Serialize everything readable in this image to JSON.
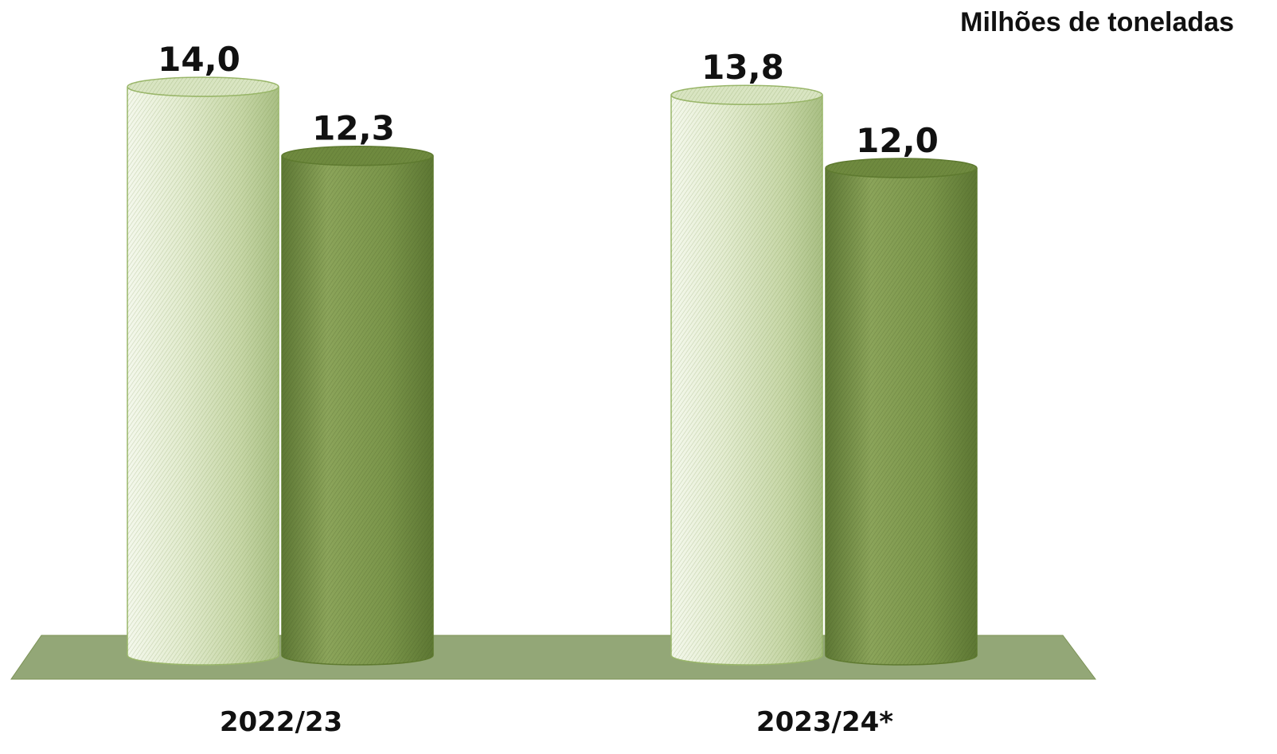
{
  "chart_data": {
    "type": "bar",
    "style": "3d-cylinder",
    "unit_label": "Milhões de toneladas",
    "categories": [
      "2022/23",
      "2023/24*"
    ],
    "series": [
      {
        "values": [
          14.0,
          13.8
        ],
        "labels": [
          "14,0",
          "13,8"
        ],
        "color": "#d6e3bd"
      },
      {
        "values": [
          12.3,
          12.0
        ],
        "labels": [
          "12,3",
          "12,0"
        ],
        "color": "#7f9a4c"
      }
    ],
    "ylim": [
      0,
      14.5
    ],
    "grid": false,
    "legend": "none",
    "floor_color": "#93a777"
  }
}
